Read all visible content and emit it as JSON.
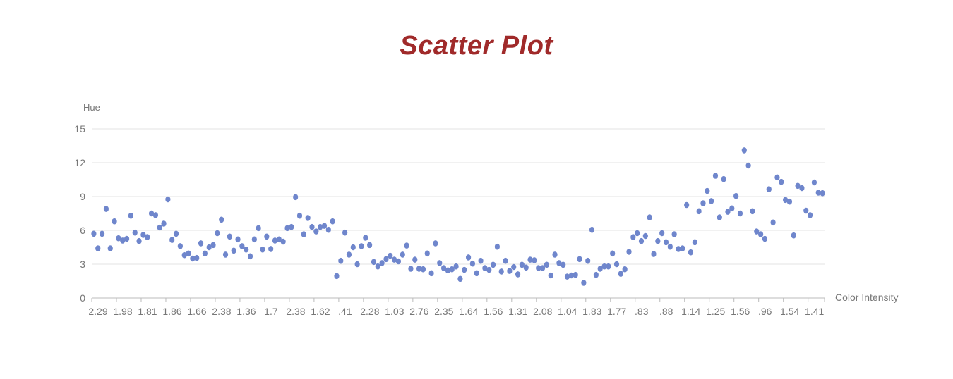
{
  "chart_data": {
    "type": "scatter",
    "title": "Scatter Plot",
    "xlabel": "Color Intensity",
    "ylabel": "Hue",
    "ylim": [
      0,
      15
    ],
    "y_ticks": [
      0,
      3,
      6,
      9,
      12,
      15
    ],
    "grid": true,
    "x_tick_labels": [
      "2.29",
      "1.98",
      "1.81",
      "1.86",
      "1.66",
      "2.38",
      "1.36",
      "1.7",
      "2.38",
      "1.62",
      ".41",
      "2.28",
      "1.03",
      "2.76",
      "2.35",
      "1.64",
      "1.56",
      "1.31",
      "2.08",
      "1.04",
      "1.83",
      "1.77",
      ".83",
      ".88",
      "1.14",
      "1.25",
      "1.56",
      ".96",
      "1.54",
      "1.41"
    ],
    "points_per_tick": 6,
    "marker_color": "#6f86cc",
    "y_values": [
      5.7,
      4.4,
      5.7,
      7.9,
      4.4,
      6.8,
      5.3,
      5.1,
      5.25,
      7.3,
      5.8,
      5.05,
      5.6,
      5.4,
      7.5,
      7.35,
      6.25,
      6.6,
      8.75,
      5.15,
      5.7,
      4.6,
      3.8,
      3.95,
      3.5,
      3.55,
      4.85,
      3.95,
      4.5,
      4.7,
      5.75,
      6.95,
      3.85,
      5.45,
      4.2,
      5.2,
      4.6,
      4.3,
      3.7,
      5.2,
      6.2,
      4.3,
      5.45,
      4.35,
      5.1,
      5.2,
      5.0,
      6.2,
      6.3,
      8.95,
      7.3,
      5.65,
      7.1,
      6.3,
      5.9,
      6.3,
      6.4,
      6.05,
      6.8,
      1.95,
      3.3,
      5.8,
      3.85,
      4.5,
      3.0,
      4.6,
      5.35,
      4.7,
      3.2,
      2.8,
      3.1,
      3.45,
      3.75,
      3.4,
      3.25,
      3.85,
      4.65,
      2.6,
      3.4,
      2.6,
      2.55,
      3.95,
      2.2,
      4.85,
      3.1,
      2.65,
      2.45,
      2.55,
      2.8,
      1.7,
      2.5,
      3.6,
      3.05,
      2.2,
      3.3,
      2.65,
      2.5,
      2.95,
      4.55,
      2.35,
      3.3,
      2.4,
      2.75,
      2.1,
      2.95,
      2.7,
      3.4,
      3.35,
      2.65,
      2.65,
      2.95,
      2.0,
      3.85,
      3.1,
      2.95,
      1.9,
      2.0,
      2.05,
      3.45,
      1.35,
      3.3,
      6.05,
      2.05,
      2.6,
      2.8,
      2.8,
      3.95,
      3.0,
      2.15,
      2.55,
      4.1,
      5.4,
      5.75,
      5.05,
      5.5,
      7.15,
      3.9,
      5.05,
      5.75,
      4.95,
      4.55,
      5.65,
      4.35,
      4.4,
      8.25,
      4.05,
      4.95,
      7.7,
      8.4,
      9.5,
      8.6,
      10.85,
      7.15,
      10.55,
      7.65,
      7.95,
      9.05,
      7.5,
      13.1,
      11.75,
      7.7,
      5.9,
      5.65,
      5.25,
      9.65,
      6.7,
      10.7,
      10.3,
      8.7,
      8.55,
      5.55,
      9.95,
      9.75,
      7.75,
      7.35,
      10.25,
      9.35,
      9.3
    ]
  }
}
